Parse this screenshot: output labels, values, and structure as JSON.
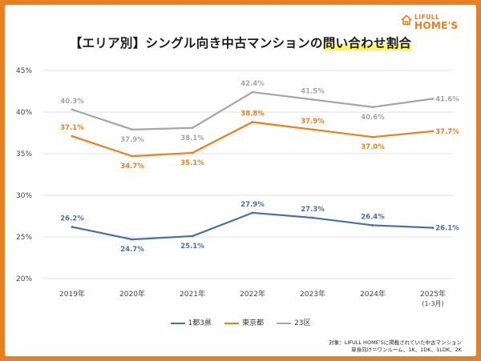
{
  "title": {
    "main": "【エリア別】シングル向き中古マンションの",
    "highlight": "問い合わせ割合"
  },
  "logo": {
    "line1": "LIFULL",
    "line2": "HOME'S",
    "icon": "house-icon",
    "color": "#e97f1f"
  },
  "chart_data": {
    "type": "line",
    "categories": [
      "2019年",
      "2020年",
      "2021年",
      "2022年",
      "2023年",
      "2024年",
      "2025年"
    ],
    "category_sublabels": [
      "",
      "",
      "",
      "",
      "",
      "",
      "(1-3月)"
    ],
    "ylim": [
      20,
      45
    ],
    "yticks": [
      "20%",
      "25%",
      "30%",
      "35%",
      "40%",
      "45%"
    ],
    "ytick_values": [
      20,
      25,
      30,
      35,
      40,
      45
    ],
    "grid": true,
    "legend_position": "bottom",
    "series": [
      {
        "name": "1都3県",
        "color": "#4a6fa5",
        "values": [
          26.2,
          24.7,
          25.1,
          27.9,
          27.3,
          26.4,
          26.1
        ],
        "labels": [
          "26.2%",
          "24.7%",
          "25.1%",
          "27.9%",
          "27.3%",
          "26.4%",
          "26.1%"
        ],
        "label_pos": [
          "above",
          "below",
          "below",
          "above",
          "above",
          "above",
          "right"
        ]
      },
      {
        "name": "東京都",
        "color": "#e97f1f",
        "values": [
          37.1,
          34.7,
          35.1,
          38.8,
          37.9,
          37.0,
          37.7
        ],
        "labels": [
          "37.1%",
          "34.7%",
          "35.1%",
          "38.8%",
          "37.9%",
          "37.0%",
          "37.7%"
        ],
        "label_pos": [
          "above",
          "below",
          "below",
          "above",
          "above",
          "below",
          "right"
        ]
      },
      {
        "name": "23区",
        "color": "#a6a6a6",
        "values": [
          40.3,
          37.9,
          38.1,
          42.4,
          41.5,
          40.6,
          41.6
        ],
        "labels": [
          "40.3%",
          "37.9%",
          "38.1%",
          "42.4%",
          "41.5%",
          "40.6%",
          "41.6%"
        ],
        "label_pos": [
          "above",
          "below",
          "below",
          "above",
          "above",
          "below",
          "right"
        ]
      }
    ]
  },
  "footnote": {
    "line1": "対象：LIFULL HOME'Sに掲載されていた中古マンション",
    "line2": "単身向け＝ワンルーム、1K、1DK、1LDK、2K"
  }
}
